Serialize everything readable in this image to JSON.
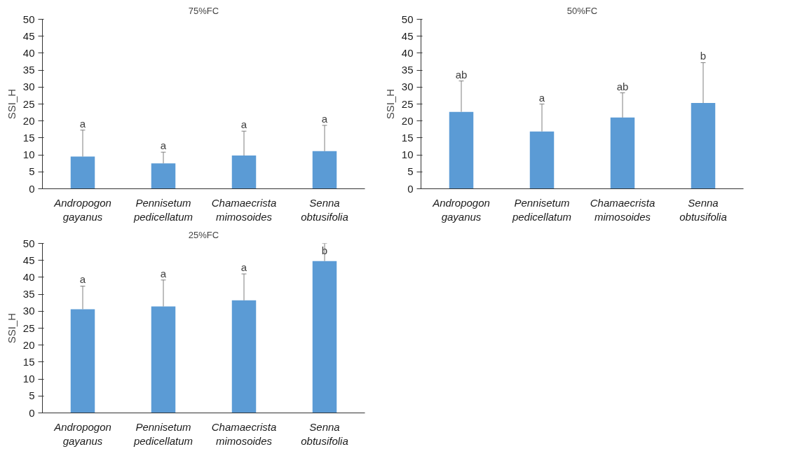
{
  "chart_data": [
    {
      "type": "bar",
      "title": "75%FC",
      "ylabel": "SSI_H",
      "categories": [
        "Andropogon gayanus",
        "Pennisetum pedicellatum",
        "Chamaecrista mimosoides",
        "Senna obtusifolia"
      ],
      "values": [
        9.5,
        7.5,
        9.8,
        11.1
      ],
      "color": "#5b9bd5",
      "errors": [
        [
          9.5,
          17.3
        ],
        [
          7.5,
          10.8
        ],
        [
          9.8,
          17
        ],
        [
          11.1,
          18.7
        ]
      ],
      "ylim": [
        0,
        50
      ],
      "yticks": [
        0,
        5,
        10,
        15,
        20,
        25,
        30,
        35,
        40,
        45,
        50
      ],
      "grid": false,
      "annotations": [
        {
          "text": "a",
          "x": "Andropogon gayanus",
          "y": 17.3
        },
        {
          "text": "a",
          "x": "Pennisetum pedicellatum",
          "y": 10.8
        },
        {
          "text": "a",
          "x": "Chamaecrista mimosoides",
          "y": 17
        },
        {
          "text": "a",
          "x": "Senna obtusifolia",
          "y": 18.7
        }
      ]
    },
    {
      "type": "bar",
      "title": "50%FC",
      "ylabel": "SSI_H",
      "categories": [
        "Andropogon gayanus",
        "Pennisetum pedicellatum",
        "Chamaecrista mimosoides",
        "Senna obtusifolia"
      ],
      "values": [
        22.7,
        16.9,
        21,
        25.3
      ],
      "color": "#5b9bd5",
      "errors": [
        [
          22.7,
          31.8
        ],
        [
          16.9,
          25
        ],
        [
          21,
          28.3
        ],
        [
          25.3,
          37.2
        ]
      ],
      "ylim": [
        0,
        50
      ],
      "yticks": [
        0,
        5,
        10,
        15,
        20,
        25,
        30,
        35,
        40,
        45,
        50
      ],
      "grid": false,
      "annotations": [
        {
          "text": "ab",
          "x": "Andropogon gayanus",
          "y": 31.8
        },
        {
          "text": "a",
          "x": "Pennisetum pedicellatum",
          "y": 25
        },
        {
          "text": "ab",
          "x": "Chamaecrista mimosoides",
          "y": 28.3
        },
        {
          "text": "b",
          "x": "Senna obtusifolia",
          "y": 37.2
        }
      ]
    },
    {
      "type": "bar",
      "title": "25%FC",
      "ylabel": "SSI_H",
      "categories": [
        "Andropogon gayanus",
        "Pennisetum pedicellatum",
        "Chamaecrista mimosoides",
        "Senna obtusifolia"
      ],
      "values": [
        30.6,
        31.4,
        33.2,
        44.8
      ],
      "color": "#5b9bd5",
      "errors": [
        [
          30.6,
          37.4
        ],
        [
          31.4,
          39.2
        ],
        [
          33.2,
          41
        ],
        [
          44.8,
          50
        ]
      ],
      "ylim": [
        0,
        50
      ],
      "yticks": [
        0,
        5,
        10,
        15,
        20,
        25,
        30,
        35,
        40,
        45,
        50
      ],
      "grid": false,
      "annotations": [
        {
          "text": "a",
          "x": "Andropogon gayanus",
          "y": 37.4
        },
        {
          "text": "a",
          "x": "Pennisetum pedicellatum",
          "y": 39.2
        },
        {
          "text": "a",
          "x": "Chamaecrista mimosoides",
          "y": 41
        },
        {
          "text": "b",
          "x": "Senna obtusifolia",
          "y": 50
        }
      ]
    }
  ]
}
